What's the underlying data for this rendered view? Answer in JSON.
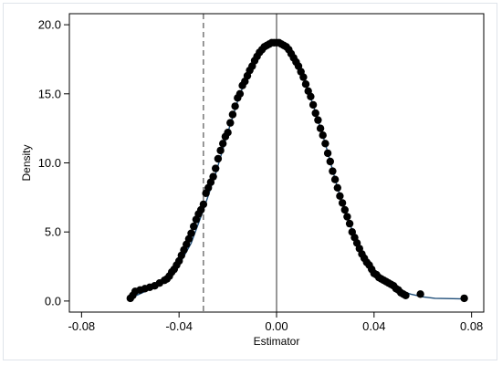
{
  "chart_data": {
    "type": "scatter",
    "title": "",
    "xlabel": "Estimator",
    "ylabel": "Density",
    "xlim": [
      -0.085,
      0.085
    ],
    "ylim": [
      -0.8,
      20.8
    ],
    "x_ticks": [
      -0.08,
      -0.04,
      0.0,
      0.04,
      0.08
    ],
    "x_tick_labels": [
      "-0.08",
      "-0.04",
      "0.00",
      "0.04",
      "0.08"
    ],
    "y_ticks": [
      0,
      5,
      10,
      15,
      20
    ],
    "y_tick_labels": [
      "0.0",
      "5.0",
      "10.0",
      "15.0",
      "20.0"
    ],
    "grid": false,
    "legend": "none",
    "reference_lines": [
      {
        "x": -0.03,
        "style": "dashed"
      },
      {
        "x": 0.0,
        "style": "solid"
      }
    ],
    "density_curve": {
      "x": [
        -0.06,
        -0.055,
        -0.05,
        -0.045,
        -0.04,
        -0.035,
        -0.03,
        -0.025,
        -0.02,
        -0.015,
        -0.01,
        -0.005,
        0.0,
        0.005,
        0.01,
        0.015,
        0.02,
        0.025,
        0.03,
        0.035,
        0.04,
        0.045,
        0.05,
        0.055,
        0.06,
        0.065,
        0.07,
        0.077
      ],
      "y": [
        0.2,
        0.6,
        1.0,
        1.5,
        2.6,
        4.2,
        6.6,
        9.2,
        12.2,
        15.0,
        17.0,
        18.4,
        18.7,
        18.2,
        16.6,
        14.2,
        11.4,
        8.2,
        5.6,
        3.4,
        2.0,
        1.4,
        0.8,
        0.5,
        0.3,
        0.2,
        0.18,
        0.15
      ]
    },
    "points": {
      "x": [
        -0.06,
        -0.059,
        -0.058,
        -0.056,
        -0.054,
        -0.052,
        -0.05,
        -0.048,
        -0.046,
        -0.045,
        -0.044,
        -0.043,
        -0.042,
        -0.041,
        -0.04,
        -0.039,
        -0.038,
        -0.037,
        -0.036,
        -0.035,
        -0.034,
        -0.033,
        -0.032,
        -0.031,
        -0.03,
        -0.029,
        -0.028,
        -0.027,
        -0.026,
        -0.025,
        -0.024,
        -0.023,
        -0.022,
        -0.021,
        -0.02,
        -0.019,
        -0.018,
        -0.017,
        -0.016,
        -0.015,
        -0.014,
        -0.013,
        -0.012,
        -0.011,
        -0.01,
        -0.009,
        -0.008,
        -0.007,
        -0.006,
        -0.005,
        -0.004,
        -0.003,
        -0.002,
        -0.001,
        0.0,
        0.001,
        0.002,
        0.003,
        0.004,
        0.005,
        0.006,
        0.007,
        0.008,
        0.009,
        0.01,
        0.011,
        0.012,
        0.013,
        0.014,
        0.015,
        0.016,
        0.017,
        0.018,
        0.019,
        0.02,
        0.021,
        0.022,
        0.023,
        0.024,
        0.025,
        0.026,
        0.027,
        0.028,
        0.029,
        0.03,
        0.031,
        0.032,
        0.033,
        0.034,
        0.035,
        0.036,
        0.037,
        0.038,
        0.039,
        0.04,
        0.041,
        0.042,
        0.043,
        0.044,
        0.045,
        0.046,
        0.047,
        0.048,
        0.049,
        0.05,
        0.051,
        0.052,
        0.053,
        0.059,
        0.077
      ],
      "y": [
        0.2,
        0.4,
        0.7,
        0.8,
        0.9,
        1.0,
        1.1,
        1.3,
        1.5,
        1.6,
        1.8,
        2.1,
        2.3,
        2.6,
        2.9,
        3.3,
        3.7,
        4.1,
        4.5,
        4.9,
        5.4,
        5.9,
        6.3,
        6.6,
        7.0,
        7.8,
        8.2,
        8.6,
        9.0,
        9.6,
        10.3,
        10.9,
        11.4,
        11.9,
        12.2,
        12.9,
        13.5,
        14.1,
        14.7,
        15.0,
        15.6,
        15.9,
        16.3,
        16.7,
        17.0,
        17.4,
        17.7,
        18.0,
        18.2,
        18.4,
        18.5,
        18.6,
        18.7,
        18.7,
        18.7,
        18.7,
        18.6,
        18.5,
        18.4,
        18.2,
        17.9,
        17.6,
        17.3,
        17.0,
        16.6,
        16.2,
        15.7,
        15.2,
        14.8,
        14.2,
        13.6,
        13.1,
        12.5,
        12.0,
        11.4,
        10.7,
        10.1,
        9.4,
        8.8,
        8.2,
        7.6,
        7.1,
        6.6,
        6.1,
        5.6,
        5.0,
        4.6,
        4.2,
        3.8,
        3.4,
        3.1,
        2.8,
        2.6,
        2.3,
        2.0,
        1.9,
        1.7,
        1.6,
        1.5,
        1.4,
        1.3,
        1.2,
        1.1,
        0.9,
        0.8,
        0.6,
        0.5,
        0.4,
        0.5,
        0.2
      ]
    },
    "colors": {
      "points": "#000000",
      "curve": "#1f4e79",
      "axes": "#000000",
      "ref_lines": "#555555"
    }
  }
}
